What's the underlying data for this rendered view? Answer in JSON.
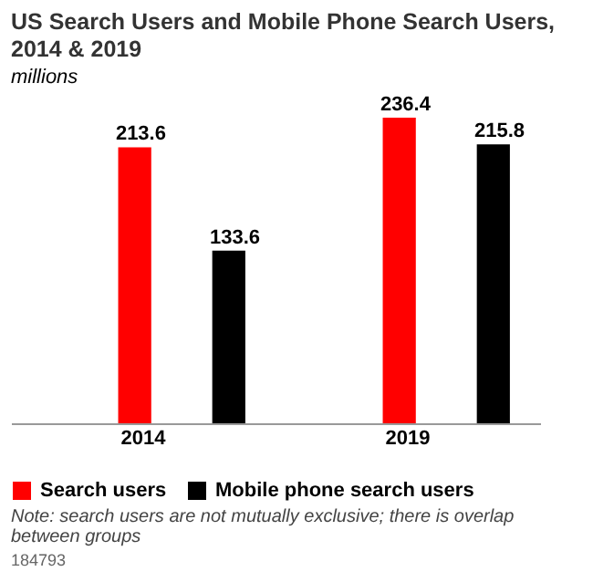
{
  "chart_data": {
    "type": "bar",
    "title": "US Search Users and Mobile Phone Search Users, 2014 & 2019",
    "subtitle": "millions",
    "categories": [
      "2014",
      "2019"
    ],
    "series": [
      {
        "name": "Search users",
        "color": "#ff0000",
        "values": [
          213.6,
          236.4
        ]
      },
      {
        "name": "Mobile phone search users",
        "color": "#000000",
        "values": [
          133.6,
          215.8
        ]
      }
    ],
    "data_labels": true,
    "legend": "bottom left",
    "grid": false,
    "annotations": [
      "Note: search users are not mutually exclusive; there is overlap between groups",
      "184793"
    ]
  }
}
